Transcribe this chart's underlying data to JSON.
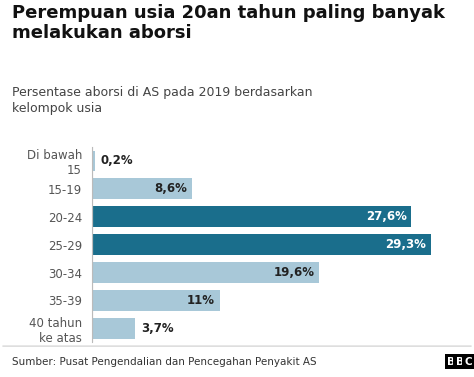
{
  "title": "Perempuan usia 20an tahun paling banyak\nmelakukan aborsi",
  "subtitle": "Persentase aborsi di AS pada 2019 berdasarkan\nkelompok usia",
  "categories": [
    "Di bawah\n15",
    "15-19",
    "20-24",
    "25-29",
    "30-34",
    "35-39",
    "40 tahun\nke atas"
  ],
  "values": [
    0.2,
    8.6,
    27.6,
    29.3,
    19.6,
    11.0,
    3.7
  ],
  "labels": [
    "0,2%",
    "8,6%",
    "27,6%",
    "29,3%",
    "19,6%",
    "11%",
    "3,7%"
  ],
  "bar_colors": [
    "#a8c8d8",
    "#a8c8d8",
    "#1a6e8c",
    "#1a6e8c",
    "#a8c8d8",
    "#a8c8d8",
    "#a8c8d8"
  ],
  "label_colors": [
    "#222222",
    "#222222",
    "#ffffff",
    "#ffffff",
    "#222222",
    "#222222",
    "#222222"
  ],
  "background_color": "#ffffff",
  "footer_bg": "#e8e8e8",
  "footer_text": "Sumber: Pusat Pengendalian dan Pencegahan Penyakit AS",
  "bbc_letters": [
    "B",
    "B",
    "C"
  ],
  "xlim": [
    0,
    32
  ],
  "title_fontsize": 13,
  "subtitle_fontsize": 9,
  "bar_label_fontsize": 8.5,
  "ytick_fontsize": 8.5,
  "footer_fontsize": 7.5
}
